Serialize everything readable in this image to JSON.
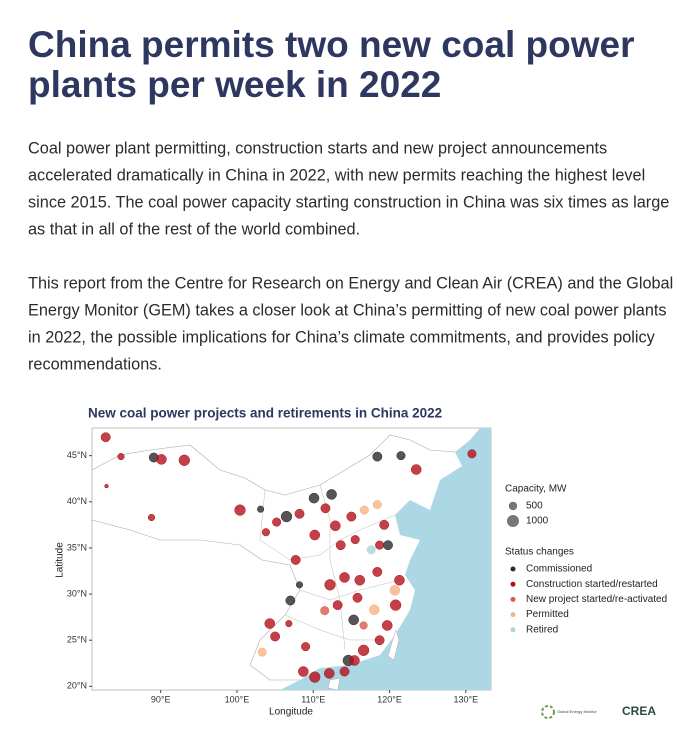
{
  "header": {
    "title_lines": [
      "China permits two new coal power",
      "plants per week in 2022"
    ]
  },
  "paragraphs": [
    [
      "Coal power plant permitting, construction starts and new project announcements",
      "accelerated dramatically in China in 2022, with new permits reaching the highest level",
      "since 2015. The coal power capacity starting construction in China was six times as large",
      "as that in all of the rest of the world combined."
    ],
    [
      "This report from the Centre for Research on Energy and Clean Air (CREA) and the Global",
      "Energy Monitor (GEM) takes a closer look at China’s permitting of new coal power plants",
      "in 2022, the possible implications for China’s climate commitments, and provides policy",
      "recommendations."
    ]
  ],
  "figure": {
    "type": "scatter",
    "title": "New coal power projects and retirements in China 2022",
    "x_label": "Longitude",
    "y_label": "Latitude",
    "xlim": [
      81,
      133.3
    ],
    "ylim": [
      19.6,
      48
    ],
    "xticks": [
      {
        "value": 90,
        "label": "90°E"
      },
      {
        "value": 100,
        "label": "100°E"
      },
      {
        "value": 110,
        "label": "110°E"
      },
      {
        "value": 120,
        "label": "120°E"
      },
      {
        "value": 130,
        "label": "130°E"
      }
    ],
    "yticks": [
      {
        "value": 20,
        "label": "20°N"
      },
      {
        "value": 25,
        "label": "25°N"
      },
      {
        "value": 30,
        "label": "30°N"
      },
      {
        "value": 35,
        "label": "35°N"
      },
      {
        "value": 40,
        "label": "40°N"
      },
      {
        "value": 45,
        "label": "45°N"
      }
    ],
    "size_legend": {
      "title": "Capacity, MW",
      "values": [
        500,
        1000
      ]
    },
    "legend_title": "Status changes",
    "series": [
      {
        "name": "Commissioned",
        "color": "#2b2b2b",
        "lon": [
          89.1,
          106.5,
          110.1,
          112.4,
          107.0,
          108.2,
          115.3,
          118.4,
          121.5,
          119.8,
          114.6,
          103.1
        ],
        "lat": [
          44.8,
          38.4,
          40.4,
          40.8,
          29.3,
          31.0,
          27.2,
          44.9,
          45.0,
          35.3,
          22.8,
          39.2
        ],
        "capacity": [
          600,
          800,
          700,
          700,
          600,
          300,
          700,
          600,
          500,
          600,
          800,
          300
        ]
      },
      {
        "name": "Construction started/restarted",
        "color": "#b3121c",
        "lon": [
          82.8,
          84.8,
          82.9,
          90.1,
          93.1,
          88.8,
          100.4,
          105.2,
          108.2,
          111.6,
          115.0,
          112.9,
          110.2,
          107.7,
          103.8,
          104.3,
          105.0,
          106.8,
          109.0,
          108.7,
          110.2,
          112.1,
          114.1,
          115.4,
          116.6,
          118.7,
          119.7,
          120.8,
          121.3,
          118.4,
          115.8,
          113.2,
          112.2,
          114.1,
          116.1,
          118.7,
          119.3,
          123.5,
          130.8,
          115.5,
          113.6
        ],
        "lat": [
          47.0,
          44.9,
          41.7,
          44.6,
          44.5,
          38.3,
          39.1,
          37.8,
          38.7,
          39.3,
          38.4,
          37.4,
          36.4,
          33.7,
          36.7,
          26.8,
          25.4,
          26.8,
          24.3,
          21.6,
          21.0,
          21.4,
          21.6,
          22.8,
          23.9,
          25.0,
          26.6,
          28.8,
          31.5,
          32.4,
          29.6,
          28.8,
          31.0,
          31.8,
          31.5,
          35.3,
          37.5,
          43.5,
          45.2,
          35.9,
          35.3
        ],
        "capacity": [
          600,
          300,
          100,
          700,
          800,
          300,
          800,
          500,
          600,
          600,
          600,
          700,
          700,
          600,
          400,
          700,
          600,
          300,
          500,
          700,
          800,
          700,
          600,
          700,
          800,
          600,
          700,
          800,
          700,
          600,
          600,
          600,
          800,
          700,
          700,
          500,
          600,
          700,
          500,
          500,
          600
        ]
      },
      {
        "name": "New project started/re-activated",
        "color": "#d95a4e",
        "lon": [
          111.5,
          116.6
        ],
        "lat": [
          28.2,
          26.6
        ],
        "capacity": [
          500,
          400
        ]
      },
      {
        "name": "Permitted",
        "color": "#f7b385",
        "lon": [
          103.3,
          120.7,
          118.0,
          116.7,
          118.4
        ],
        "lat": [
          23.7,
          30.4,
          28.3,
          39.1,
          39.7
        ],
        "capacity": [
          500,
          700,
          700,
          500,
          500
        ]
      },
      {
        "name": "Retired",
        "color": "#a7d8d3",
        "lon": [
          117.6
        ],
        "lat": [
          34.8
        ],
        "capacity": [
          500
        ]
      }
    ]
  },
  "logos": {
    "gem": "Global Energy Monitor",
    "crea": "CREA"
  }
}
